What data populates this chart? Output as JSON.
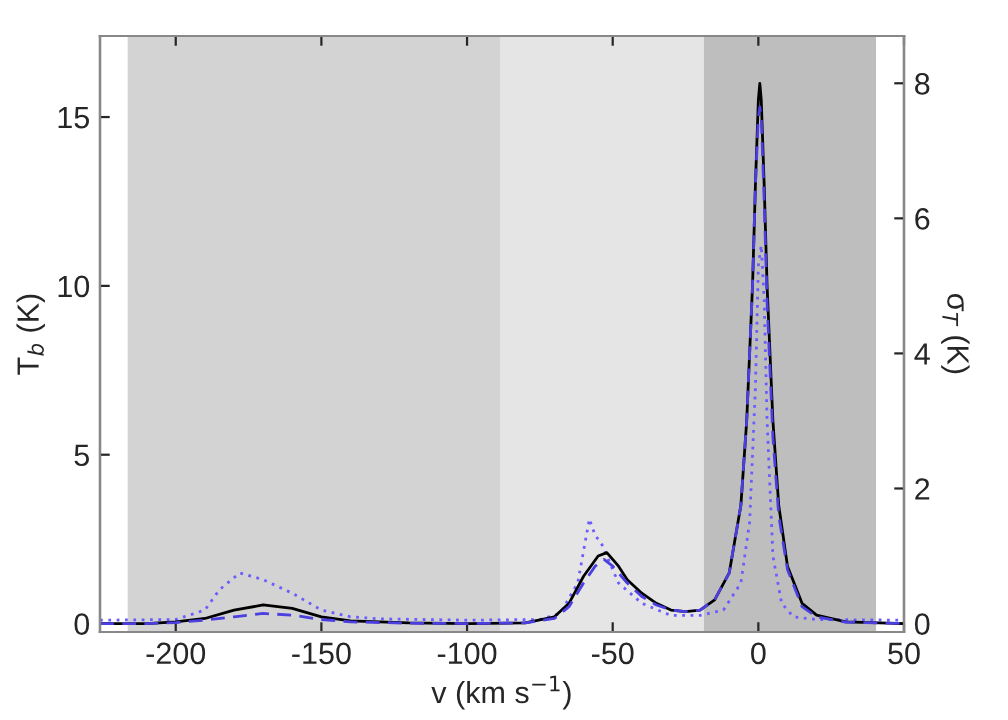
{
  "chart_data": {
    "type": "line",
    "xlabel": "v (km s$^{−1}$)",
    "ylabel": "T$_{b}$ (K)",
    "y2label": "σ$_{T}$ (K)",
    "xlim": [
      -226,
      50
    ],
    "xticks": [
      -200,
      -150,
      -100,
      -50,
      0,
      50
    ],
    "ylim": [
      -0.25,
      17.4
    ],
    "yticks": [
      0,
      5,
      10,
      15
    ],
    "y2lim": [
      -0.125,
      8.7
    ],
    "y2ticks": [
      0,
      2,
      4,
      6,
      8
    ],
    "grid": false,
    "legend": false,
    "bands": [
      {
        "axis": "x",
        "from": -216.5,
        "to": -88.7,
        "color": "#d3d3d3"
      },
      {
        "axis": "x",
        "from": -88.7,
        "to": -18.7,
        "color": "#e5e5e5"
      },
      {
        "axis": "x",
        "from": -18.7,
        "to": 40.4,
        "color": "#bebebe"
      }
    ],
    "series": [
      {
        "color": "#000000",
        "line_style": "solid",
        "x": [
          -226,
          -210,
          -200,
          -190,
          -180,
          -170,
          -160,
          -150,
          -140,
          -120,
          -100,
          -80,
          -70,
          -65,
          -60,
          -55,
          -52,
          -48,
          -45,
          -40,
          -35,
          -30,
          -25,
          -20,
          -15,
          -10,
          -6,
          -4,
          -2,
          -1,
          0,
          0.5,
          1,
          2,
          3,
          5,
          7,
          10,
          15,
          20,
          30,
          50
        ],
        "values": [
          0,
          0,
          0.05,
          0.15,
          0.4,
          0.55,
          0.45,
          0.2,
          0.08,
          0.02,
          0,
          0.02,
          0.2,
          0.6,
          1.4,
          2.0,
          2.1,
          1.7,
          1.3,
          0.9,
          0.6,
          0.4,
          0.35,
          0.4,
          0.7,
          1.5,
          3.5,
          6,
          10,
          13,
          15.5,
          16,
          15.5,
          13,
          10,
          6,
          3.5,
          1.7,
          0.6,
          0.25,
          0.05,
          0
        ]
      },
      {
        "color": "#4b3fe0",
        "line_style": "dashed",
        "x": [
          -226,
          -210,
          -200,
          -190,
          -180,
          -170,
          -160,
          -150,
          -140,
          -120,
          -100,
          -80,
          -70,
          -65,
          -60,
          -56,
          -53,
          -50,
          -45,
          -40,
          -35,
          -30,
          -25,
          -20,
          -15,
          -10,
          -6,
          -4,
          -2,
          -1,
          0,
          0.5,
          1,
          2,
          3,
          5,
          7,
          10,
          15,
          20,
          30,
          50
        ],
        "values": [
          0,
          0,
          0.03,
          0.1,
          0.2,
          0.3,
          0.25,
          0.12,
          0.05,
          0.01,
          0,
          0.02,
          0.15,
          0.5,
          1.2,
          1.7,
          1.9,
          1.7,
          1.2,
          0.8,
          0.55,
          0.4,
          0.35,
          0.4,
          0.7,
          1.5,
          3.5,
          6,
          10,
          13,
          15,
          15.3,
          15,
          12.5,
          9.5,
          5.5,
          3.2,
          1.6,
          0.5,
          0.2,
          0.04,
          0
        ]
      },
      {
        "color": "#6a5cff",
        "line_style": "dotted",
        "axis": "y2",
        "x": [
          -226,
          -200,
          -190,
          -185,
          -178,
          -170,
          -160,
          -150,
          -140,
          -130,
          -100,
          -75,
          -68,
          -62,
          -58,
          -56,
          -54,
          -52,
          -48,
          -40,
          -30,
          -20,
          -12,
          -6,
          -3,
          -1,
          0,
          1,
          2,
          3,
          5,
          8,
          12,
          20,
          50
        ],
        "values": [
          0.05,
          0.06,
          0.2,
          0.5,
          0.75,
          0.65,
          0.45,
          0.2,
          0.1,
          0.07,
          0.05,
          0.06,
          0.15,
          0.6,
          1.55,
          1.3,
          1.2,
          1.0,
          0.6,
          0.3,
          0.12,
          0.12,
          0.2,
          0.6,
          1.5,
          3.5,
          5.3,
          5.6,
          4.8,
          3,
          1.0,
          0.3,
          0.1,
          0.06,
          0.05
        ]
      }
    ]
  }
}
